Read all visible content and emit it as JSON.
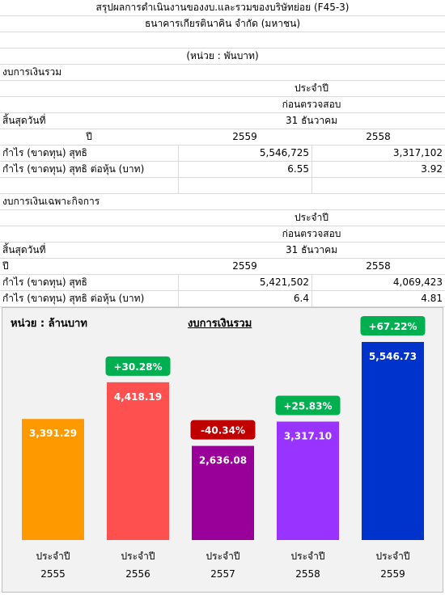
{
  "header": {
    "title": "สรุปผลการดำเนินงานของงบ.และรวมของบริษัทย่อย (F45-3)",
    "company": "ธนาคารเกียรตินาคิน จำกัด (มหาชน)",
    "unit": "(หน่วย : พันบาท)"
  },
  "consolidated": {
    "section_title": "งบการเงินรวม",
    "period_label": "ประจำปี",
    "audit_label": "ก่อนตรวจสอบ",
    "period_end_label": "สิ้นสุดวันที่",
    "period_end_value": "31 ธันวาคม",
    "year_label": "ปี",
    "year_1": "2559",
    "year_2": "2558",
    "net_profit_label": "กำไร (ขาดทุน) สุทธิ",
    "net_profit_1": "5,546,725",
    "net_profit_2": "3,317,102",
    "eps_label": "กำไร (ขาดทุน) สุทธิ ต่อหุ้น (บาท)",
    "eps_1": "6.55",
    "eps_2": "3.92"
  },
  "separate": {
    "section_title": "งบการเงินเฉพาะกิจการ",
    "period_label": "ประจำปี",
    "audit_label": "ก่อนตรวจสอบ",
    "period_end_label": "สิ้นสุดวันที่",
    "period_end_value": "31 ธันวาคม",
    "year_label": "ปี",
    "year_1": "2559",
    "year_2": "2558",
    "net_profit_label": "กำไร (ขาดทุน) สุทธิ",
    "net_profit_1": "5,421,502",
    "net_profit_2": "4,069,423",
    "eps_label": "กำไร (ขาดทุน) สุทธิ ต่อหุ้น (บาท)",
    "eps_1": "6.4",
    "eps_2": "4.81"
  },
  "chart_data": {
    "type": "bar",
    "title": "งบการเงินรวม",
    "unit_label": "หน่วย : ล้านบาท",
    "category_prefix": "ประจำปี",
    "categories": [
      "2555",
      "2556",
      "2557",
      "2558",
      "2559"
    ],
    "values": [
      3391.29,
      4418.19,
      2636.08,
      3317.1,
      5546.73
    ],
    "value_labels": [
      "3,391.29",
      "4,418.19",
      "2,636.08",
      "3,317.10",
      "5,546.73"
    ],
    "changes": [
      null,
      "+30.28%",
      "-40.34%",
      "+25.83%",
      "+67.22%"
    ],
    "bar_colors": [
      "#FF9900",
      "#FF5050",
      "#990099",
      "#9933FF",
      "#0033CC"
    ],
    "change_colors": {
      "positive": "#00B050",
      "negative": "#C00000"
    },
    "ylim": [
      0,
      6000
    ],
    "grid": false,
    "legend": "none"
  }
}
